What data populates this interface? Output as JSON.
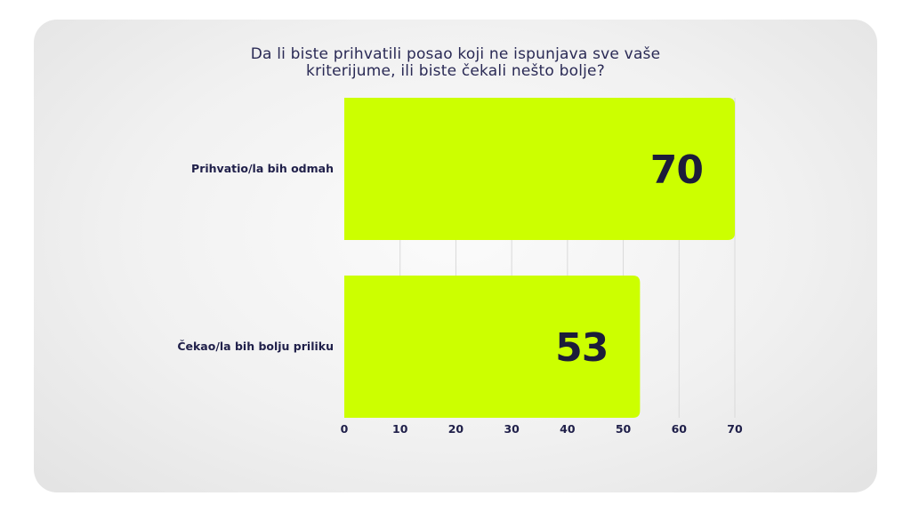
{
  "title_lines": [
    "Da li biste prihvatili posao koji ne ispunjava sve vaše",
    "kriterijume, ili biste čekali nešto bolje?"
  ],
  "colors": {
    "bar": "#ccff00",
    "text": "#20204a",
    "grid": "#d9d9d9"
  },
  "chart_data": {
    "type": "bar",
    "orientation": "horizontal",
    "title": "Da li biste prihvatili posao koji ne ispunjava sve vaše kriterijume, ili biste čekali nešto bolje?",
    "categories": [
      "Prihvatio/la bih odmah",
      "Čekao/la bih bolju priliku"
    ],
    "values": [
      70,
      53
    ],
    "xlim": [
      0,
      70
    ],
    "xticks": [
      0,
      10,
      20,
      30,
      40,
      50,
      60,
      70
    ],
    "grid": true,
    "legend": "none"
  }
}
